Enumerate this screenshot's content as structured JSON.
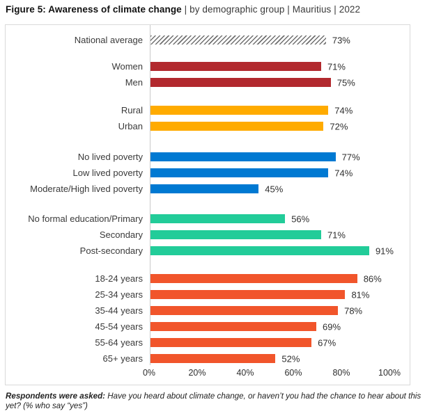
{
  "title": {
    "bold": "Figure 5: Awareness of climate change",
    "rest": " | by demographic group | Mauritius | 2022"
  },
  "footer": {
    "bold": "Respondents were asked:",
    "rest": " Have you heard about climate change, or haven’t you had the chance to hear about this yet? (% who say “yes”)"
  },
  "colors": {
    "national_hatch_stripe": "#6f6f6f",
    "gender": "#b2292e",
    "location": "#ffab00",
    "poverty": "#0079d2",
    "education": "#22cc99",
    "age": "#f1552b",
    "panel_border": "#d9d9d9",
    "axis_line": "#c9c9c9",
    "text": "#2e2e2e"
  },
  "chart_data": {
    "type": "bar",
    "orientation": "horizontal",
    "title": "Figure 5: Awareness of climate change | by demographic group | Mauritius | 2022",
    "xlabel": "",
    "ylabel": "",
    "unit": "%",
    "xlim": [
      0,
      100
    ],
    "x_ticks": [
      "0%",
      "20%",
      "40%",
      "60%",
      "80%",
      "100%"
    ],
    "grid": false,
    "legend": false,
    "groups": [
      {
        "name": "national",
        "style": "hatch",
        "items": [
          {
            "label": "National average",
            "value": 73
          }
        ]
      },
      {
        "name": "gender",
        "color": "#b2292e",
        "items": [
          {
            "label": "Women",
            "value": 71
          },
          {
            "label": "Men",
            "value": 75
          }
        ]
      },
      {
        "name": "location",
        "color": "#ffab00",
        "items": [
          {
            "label": "Rural",
            "value": 74
          },
          {
            "label": "Urban",
            "value": 72
          }
        ]
      },
      {
        "name": "poverty",
        "color": "#0079d2",
        "items": [
          {
            "label": "No lived poverty",
            "value": 77
          },
          {
            "label": "Low lived poverty",
            "value": 74
          },
          {
            "label": "Moderate/High lived poverty",
            "value": 45
          }
        ]
      },
      {
        "name": "education",
        "color": "#22cc99",
        "items": [
          {
            "label": "No formal education/Primary",
            "value": 56
          },
          {
            "label": "Secondary",
            "value": 71
          },
          {
            "label": "Post-secondary",
            "value": 91
          }
        ]
      },
      {
        "name": "age",
        "color": "#f1552b",
        "items": [
          {
            "label": "18-24 years",
            "value": 86
          },
          {
            "label": "25-34 years",
            "value": 81
          },
          {
            "label": "35-44 years",
            "value": 78
          },
          {
            "label": "45-54 years",
            "value": 69
          },
          {
            "label": "55-64 years",
            "value": 67
          },
          {
            "label": "65+ years",
            "value": 52
          }
        ]
      }
    ]
  }
}
